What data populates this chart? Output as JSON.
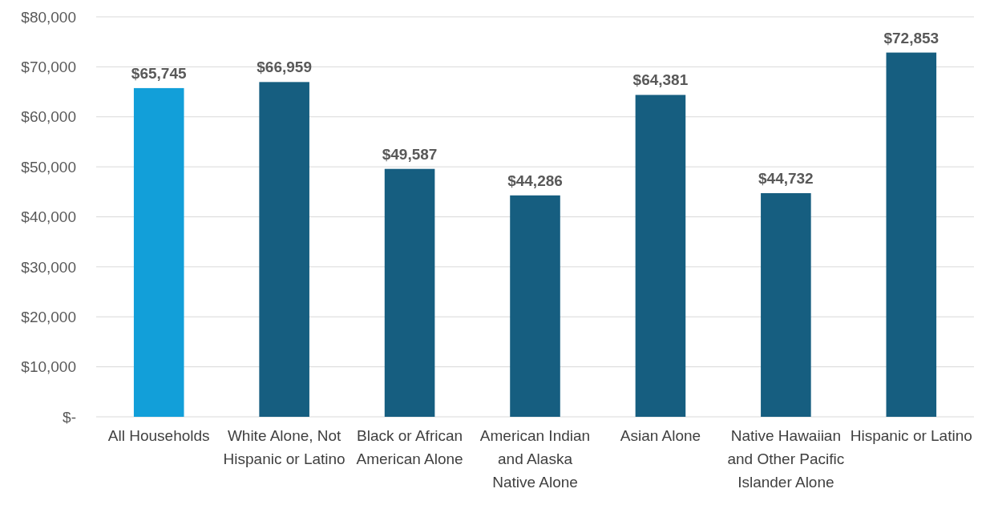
{
  "chart_data": {
    "type": "bar",
    "categories": [
      "All Households",
      "White Alone, Not Hispanic or Latino",
      "Black or African American Alone",
      "American Indian and Alaska Native Alone",
      "Asian Alone",
      "Native Hawaiian and Other Pacific Islander Alone",
      "Hispanic or Latino"
    ],
    "values": [
      65745,
      66959,
      49587,
      44286,
      64381,
      44732,
      72853
    ],
    "colors": [
      "#129fd9",
      "#165e80",
      "#165e80",
      "#165e80",
      "#165e80",
      "#165e80",
      "#165e80"
    ],
    "value_labels": [
      "$65,745",
      "$66,959",
      "$49,587",
      "$44,286",
      "$64,381",
      "$44,732",
      "$72,853"
    ],
    "ylim": [
      0,
      80000
    ],
    "yticks": [
      {
        "value": 0,
        "label": "$-"
      },
      {
        "value": 10000,
        "label": "$10,000"
      },
      {
        "value": 20000,
        "label": "$20,000"
      },
      {
        "value": 30000,
        "label": "$30,000"
      },
      {
        "value": 40000,
        "label": "$40,000"
      },
      {
        "value": 50000,
        "label": "$50,000"
      },
      {
        "value": 60000,
        "label": "$60,000"
      },
      {
        "value": 70000,
        "label": "$70,000"
      },
      {
        "value": 80000,
        "label": "$80,000"
      }
    ],
    "grid": "y"
  }
}
